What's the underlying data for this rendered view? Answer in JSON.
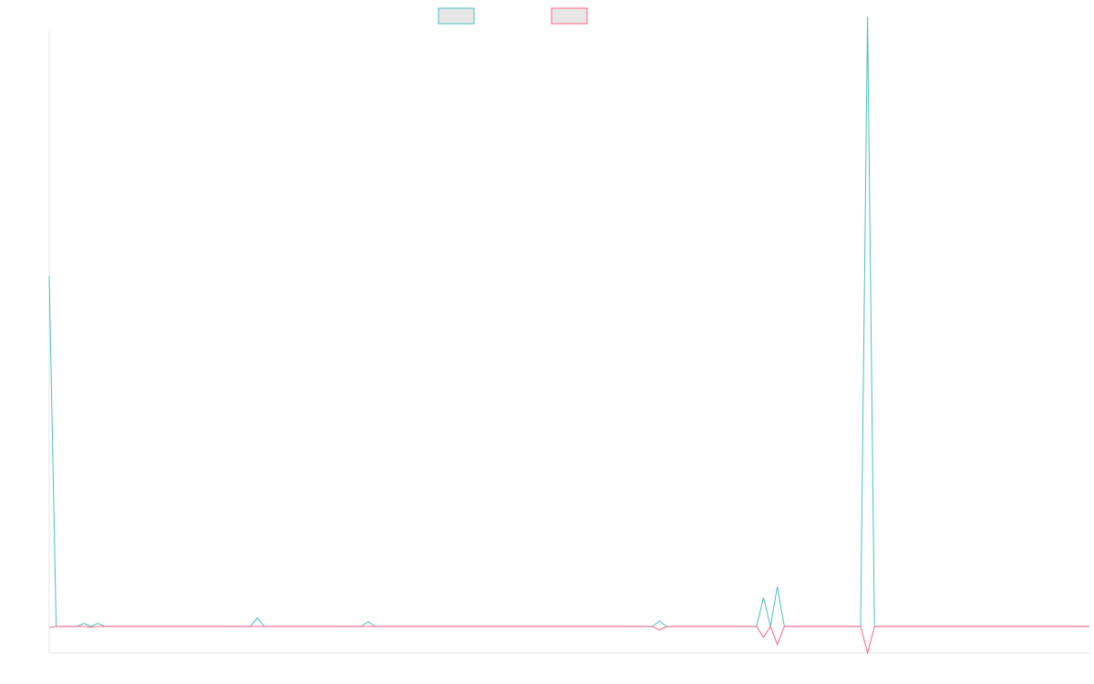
{
  "chart_data": {
    "type": "line",
    "title": "",
    "xlabel": "",
    "ylabel": "",
    "grid": false,
    "legend_position": "top-center",
    "x": [
      0,
      1,
      2,
      3,
      4,
      5,
      6,
      7,
      8,
      9,
      10,
      11,
      12,
      13,
      14,
      15,
      16,
      17,
      18,
      19,
      20,
      21,
      22,
      23,
      24,
      25,
      26,
      27,
      28,
      29,
      30,
      31,
      32,
      33,
      34,
      35,
      36,
      37,
      38,
      39,
      40,
      41,
      42,
      43,
      44,
      45,
      46,
      47,
      48,
      49,
      50,
      51,
      52,
      53,
      54,
      55,
      56,
      57,
      58,
      59,
      60,
      61,
      62,
      63,
      64,
      65,
      66,
      67,
      68,
      69,
      70,
      71,
      72,
      73,
      74,
      75,
      76,
      77,
      78,
      79,
      80,
      81,
      82,
      83,
      84,
      85,
      86,
      87,
      88,
      89,
      90,
      91,
      92,
      93,
      94,
      95,
      96,
      97,
      98,
      99,
      100,
      101,
      102,
      103,
      104,
      105,
      106,
      107,
      108,
      109,
      110,
      111,
      112,
      113,
      114,
      115,
      116,
      117,
      118,
      119,
      120,
      121,
      122,
      123,
      124,
      125,
      126,
      127,
      128,
      129,
      130,
      131,
      132,
      133,
      134,
      135,
      136,
      137,
      138,
      139,
      140,
      141,
      142,
      143,
      144,
      145,
      146,
      147,
      148,
      149,
      150
    ],
    "ylim": [
      -44,
      980
    ],
    "series": [
      {
        "color": "#4bc0c0",
        "values": [
          580,
          0,
          0,
          0,
          0,
          5,
          0,
          5,
          0,
          0,
          0,
          0,
          0,
          0,
          0,
          0,
          0,
          0,
          0,
          0,
          0,
          0,
          0,
          0,
          0,
          0,
          0,
          0,
          0,
          0,
          14,
          0,
          0,
          0,
          0,
          0,
          0,
          0,
          0,
          0,
          0,
          0,
          0,
          0,
          0,
          0,
          8,
          0,
          0,
          0,
          0,
          0,
          0,
          0,
          0,
          0,
          0,
          0,
          0,
          0,
          0,
          0,
          0,
          0,
          0,
          0,
          0,
          0,
          0,
          0,
          0,
          0,
          0,
          0,
          0,
          0,
          0,
          0,
          0,
          0,
          0,
          0,
          0,
          0,
          0,
          0,
          0,
          0,
          9,
          0,
          0,
          0,
          0,
          0,
          0,
          0,
          0,
          0,
          0,
          0,
          0,
          0,
          0,
          48,
          0,
          66,
          0,
          0,
          0,
          0,
          0,
          0,
          0,
          0,
          0,
          0,
          0,
          0,
          1010,
          0,
          0,
          0,
          0,
          0,
          0,
          0,
          0,
          0,
          0,
          0,
          0,
          0,
          0,
          0,
          0,
          0,
          0,
          0,
          0,
          0,
          0,
          0,
          0,
          0,
          0,
          0,
          0,
          0,
          0,
          0,
          0
        ]
      },
      {
        "color": "#ff6384",
        "values": [
          -2,
          0,
          0,
          0,
          0,
          0,
          -1,
          0,
          0,
          0,
          0,
          0,
          0,
          0,
          0,
          0,
          0,
          0,
          0,
          0,
          0,
          0,
          0,
          0,
          0,
          0,
          0,
          0,
          0,
          0,
          0,
          0,
          0,
          0,
          0,
          0,
          0,
          0,
          0,
          0,
          0,
          0,
          0,
          0,
          0,
          0,
          0,
          0,
          0,
          0,
          0,
          0,
          0,
          0,
          0,
          0,
          0,
          0,
          0,
          0,
          0,
          0,
          0,
          0,
          0,
          0,
          0,
          0,
          0,
          0,
          0,
          0,
          0,
          0,
          0,
          0,
          0,
          0,
          0,
          0,
          0,
          0,
          0,
          0,
          0,
          0,
          0,
          0,
          -6,
          0,
          0,
          0,
          0,
          0,
          0,
          0,
          0,
          0,
          0,
          0,
          0,
          0,
          0,
          -18,
          0,
          -30,
          0,
          0,
          0,
          0,
          0,
          0,
          0,
          0,
          0,
          0,
          0,
          0,
          -44,
          0,
          0,
          0,
          0,
          0,
          0,
          0,
          0,
          0,
          0,
          0,
          0,
          0,
          0,
          0,
          0,
          0,
          0,
          0,
          0,
          0,
          0,
          0,
          0,
          0,
          0,
          0,
          0,
          0,
          0,
          0,
          0
        ]
      }
    ]
  }
}
